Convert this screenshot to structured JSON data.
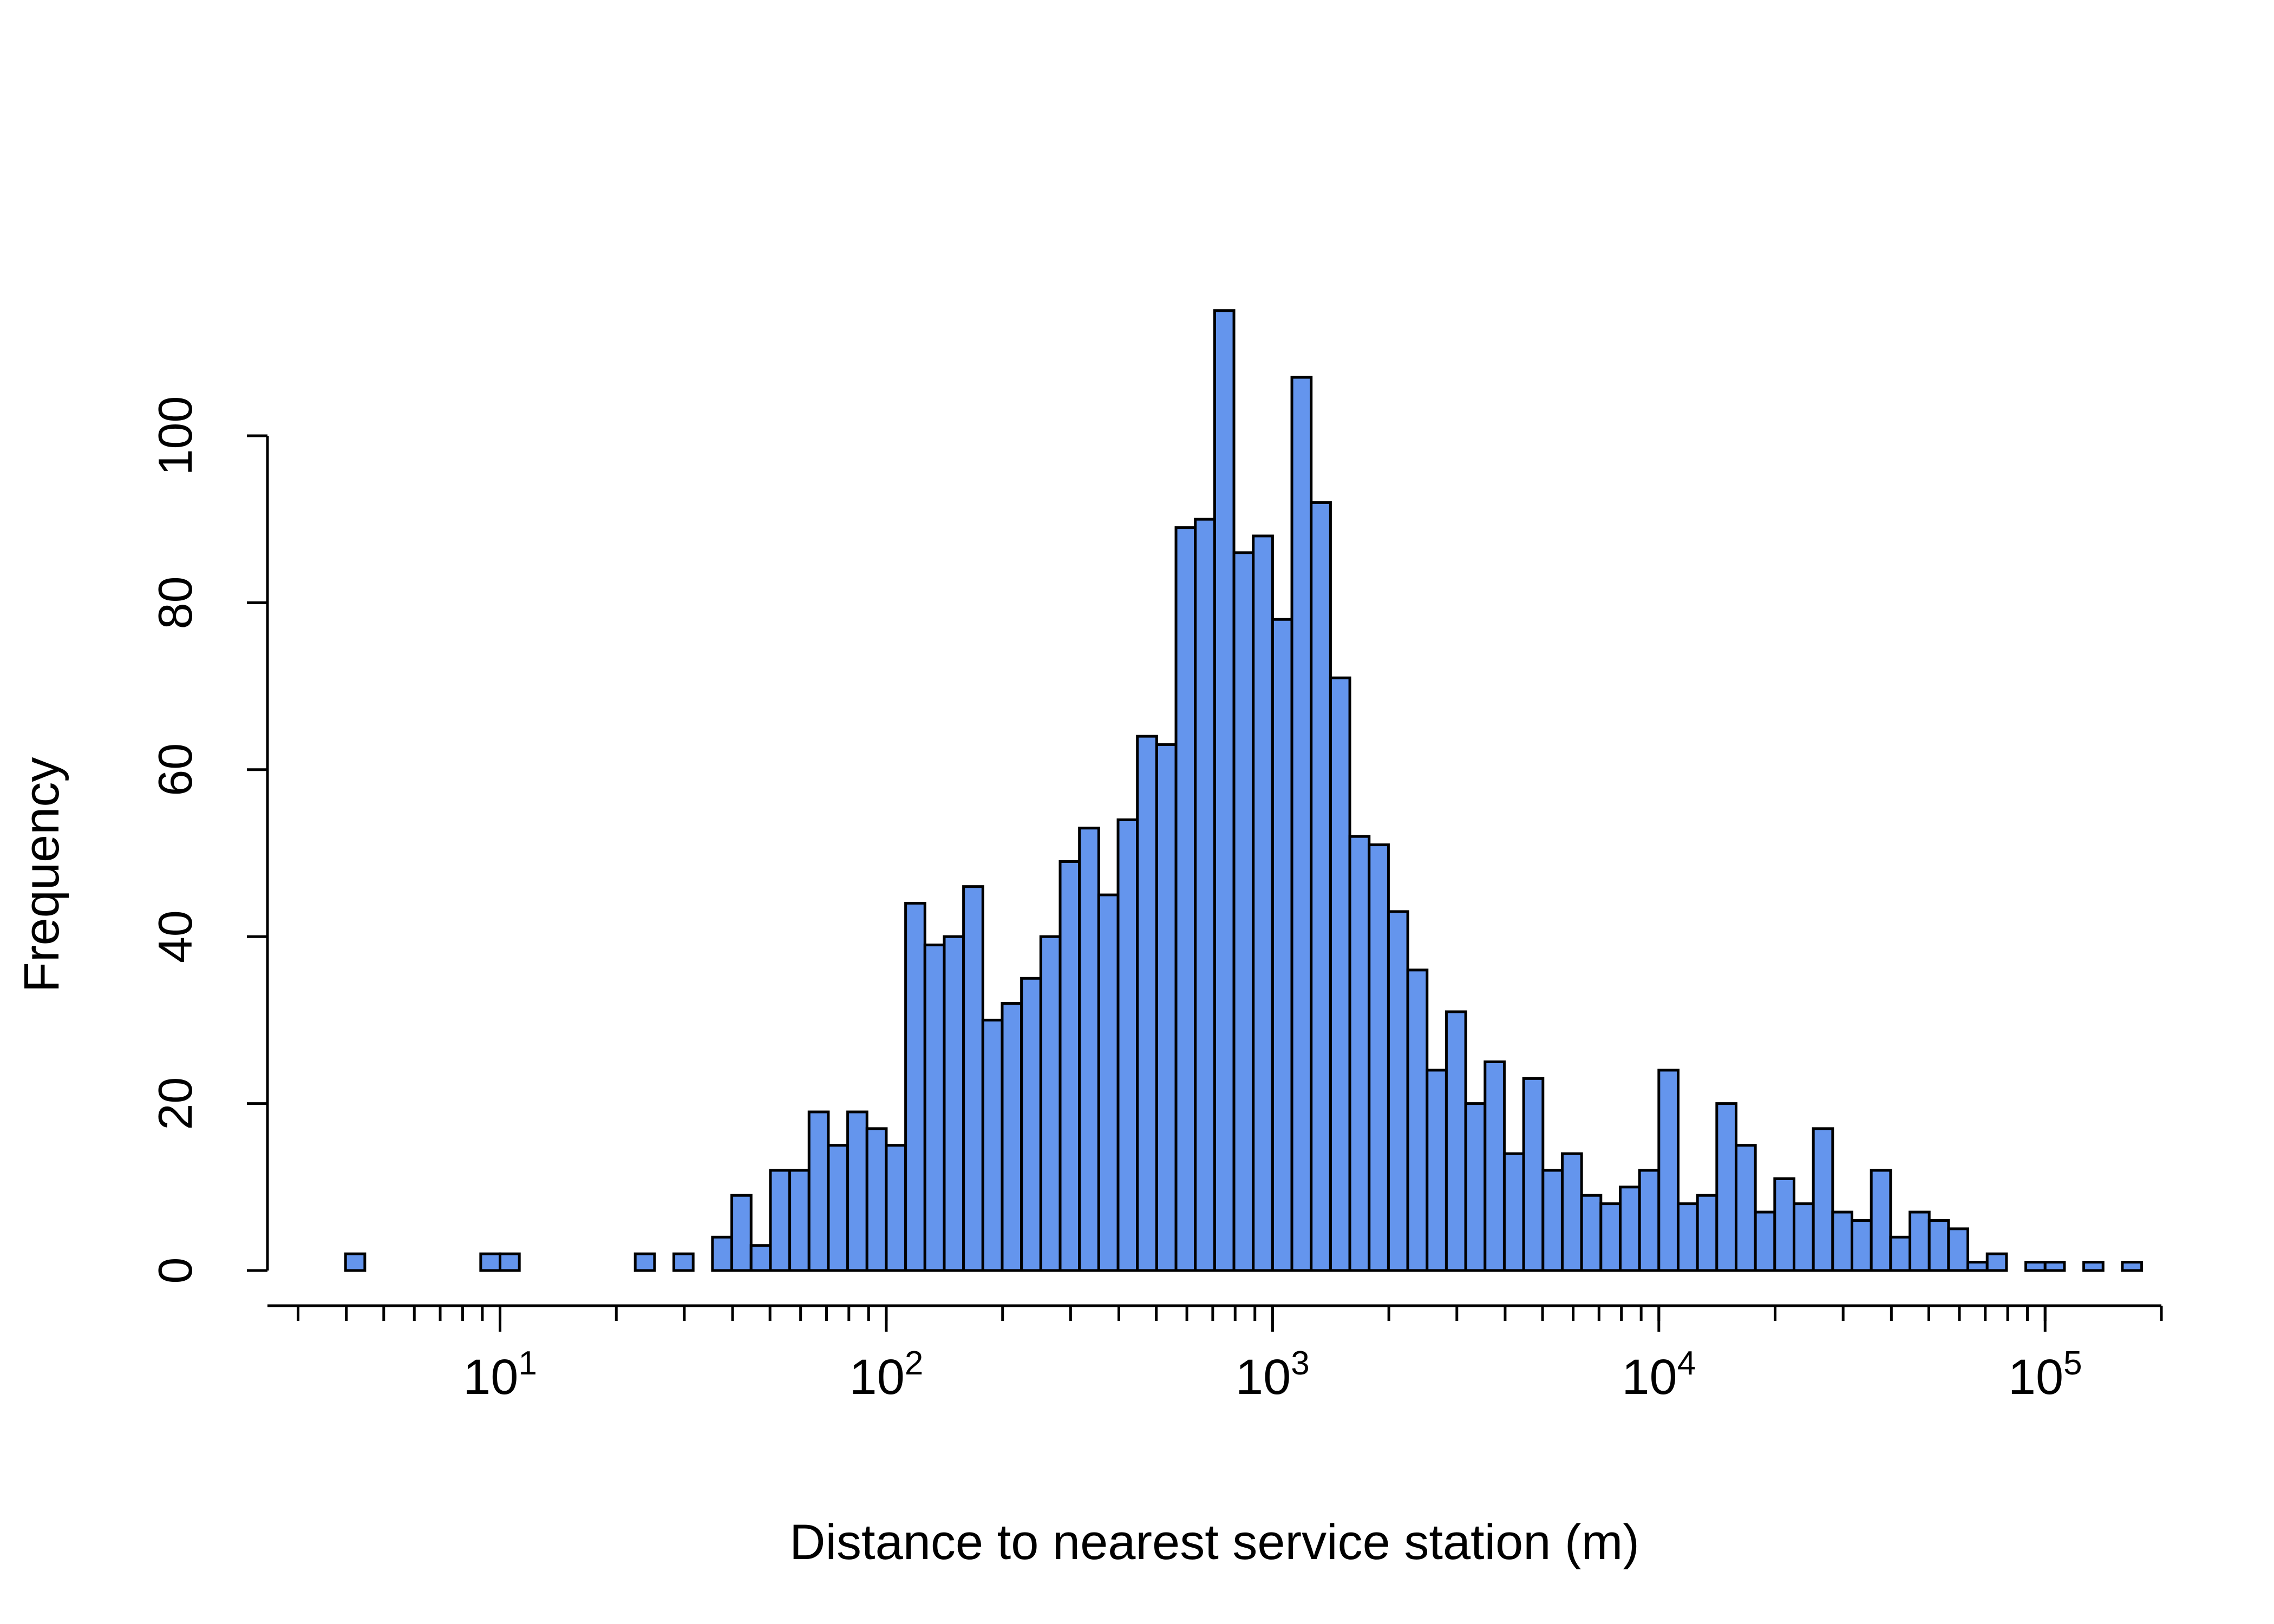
{
  "chart_data": {
    "type": "bar",
    "subtype": "histogram",
    "x_scale": "log10",
    "xlabel": "Distance to nearest service station (m)",
    "ylabel": "Frequency",
    "xlim": [
      2.5,
      200000
    ],
    "ylim": [
      0,
      120
    ],
    "grid": false,
    "bar_color": "#6495ED",
    "edge_color": "#000000",
    "y_ticks": [
      0,
      20,
      40,
      60,
      80,
      100
    ],
    "y_tick_labels": [
      "0",
      "20",
      "40",
      "60",
      "80",
      "100"
    ],
    "x_major_ticks": [
      10,
      100,
      1000,
      10000,
      100000
    ],
    "x_major_tick_labels": [
      {
        "base": "10",
        "exp": "1"
      },
      {
        "base": "10",
        "exp": "2"
      },
      {
        "base": "10",
        "exp": "3"
      },
      {
        "base": "10",
        "exp": "4"
      },
      {
        "base": "10",
        "exp": "5"
      }
    ],
    "bins": {
      "log10_start": 0.6,
      "log10_width": 0.05,
      "counts": [
        2,
        0,
        0,
        0,
        0,
        0,
        0,
        2,
        2,
        0,
        0,
        0,
        0,
        0,
        0,
        2,
        0,
        2,
        0,
        4,
        9,
        3,
        12,
        12,
        19,
        15,
        19,
        17,
        15,
        44,
        39,
        40,
        46,
        30,
        32,
        35,
        40,
        49,
        53,
        45,
        54,
        64,
        63,
        89,
        90,
        115,
        86,
        88,
        78,
        107,
        92,
        71,
        52,
        51,
        43,
        36,
        24,
        31,
        20,
        25,
        14,
        23,
        12,
        14,
        9,
        8,
        10,
        12,
        24,
        8,
        9,
        20,
        15,
        7,
        11,
        8,
        17,
        7,
        6,
        12,
        4,
        7,
        6,
        5,
        1,
        2,
        0,
        1,
        1,
        0,
        1,
        0,
        1
      ]
    }
  }
}
